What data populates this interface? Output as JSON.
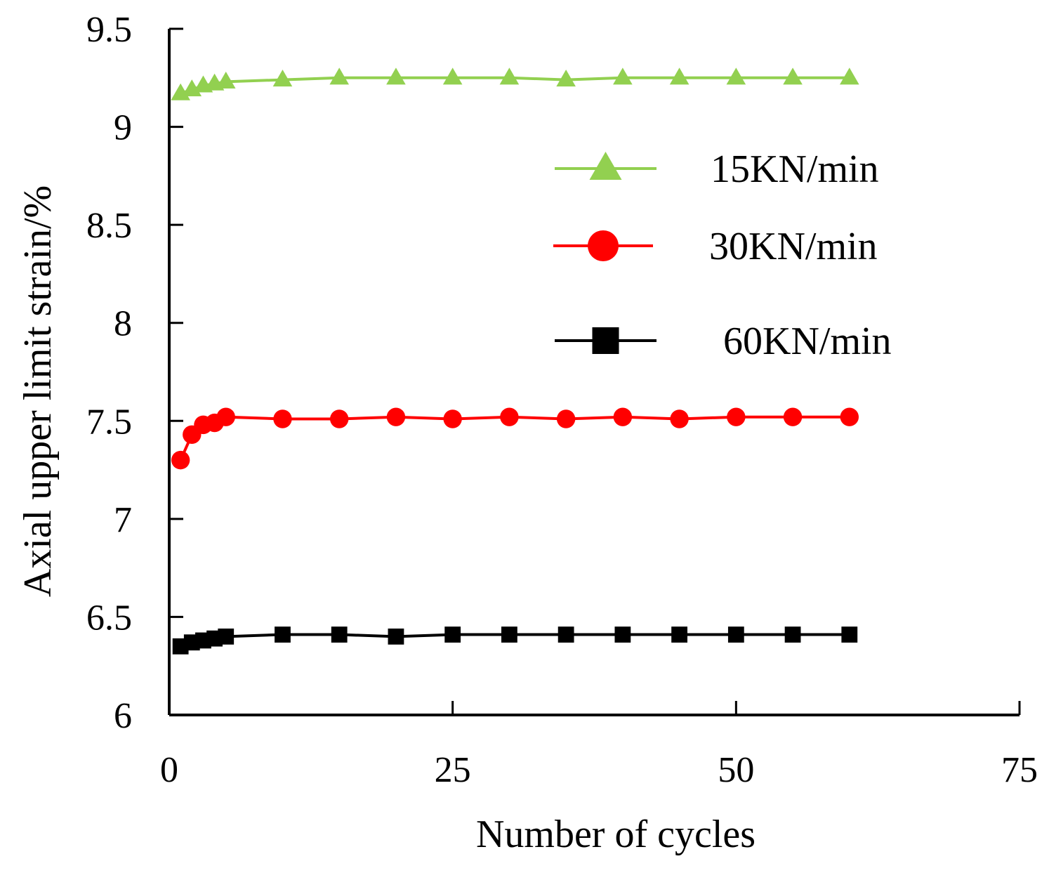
{
  "chart_data": {
    "type": "line",
    "title": "",
    "xlabel": "Number of cycles",
    "ylabel": "Axial upper limit strain/%",
    "xlim": [
      0,
      75
    ],
    "ylim": [
      6,
      9.5
    ],
    "x_ticks": [
      0,
      25,
      50,
      75
    ],
    "x_tick_labels": [
      "0",
      "25",
      "50",
      "75"
    ],
    "y_ticks": [
      6,
      6.5,
      7,
      7.5,
      8,
      8.5,
      9,
      9.5
    ],
    "y_tick_labels": [
      "6",
      "6.5",
      "7",
      "7.5",
      "8",
      "8.5",
      "9",
      "9.5"
    ],
    "grid": false,
    "legend_position": "upper-right",
    "x": [
      1,
      2,
      3,
      4,
      5,
      10,
      15,
      20,
      25,
      30,
      35,
      40,
      45,
      50,
      55,
      60
    ],
    "series": [
      {
        "name": "15KN/min",
        "legend_label": "15KN/min",
        "color": "#92d050",
        "marker": "triangle",
        "values": [
          9.17,
          9.19,
          9.21,
          9.22,
          9.23,
          9.24,
          9.25,
          9.25,
          9.25,
          9.25,
          9.24,
          9.25,
          9.25,
          9.25,
          9.25,
          9.25
        ]
      },
      {
        "name": "30KN/min",
        "legend_label": "30KN/min",
        "color": "#ff0000",
        "marker": "circle",
        "values": [
          7.3,
          7.43,
          7.48,
          7.49,
          7.52,
          7.51,
          7.51,
          7.52,
          7.51,
          7.52,
          7.51,
          7.52,
          7.51,
          7.52,
          7.52,
          7.52
        ]
      },
      {
        "name": "60KN/min",
        "legend_label": "60KN/min",
        "color": "#000000",
        "marker": "square",
        "values": [
          6.35,
          6.37,
          6.38,
          6.39,
          6.4,
          6.41,
          6.41,
          6.4,
          6.41,
          6.41,
          6.41,
          6.41,
          6.41,
          6.41,
          6.41,
          6.41
        ]
      }
    ]
  }
}
